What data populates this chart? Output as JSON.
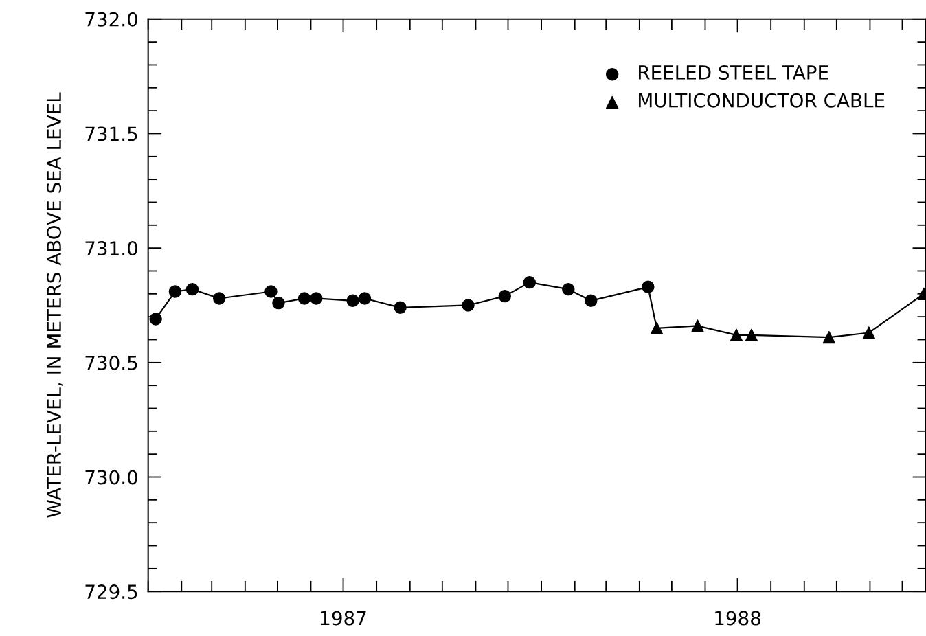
{
  "chart_data": {
    "type": "line",
    "ylabel": "WATER-LEVEL, IN METERS ABOVE SEA LEVEL",
    "xlim": [
      "1987-01-01",
      "1988-12-23"
    ],
    "ylim": [
      729.5,
      732.0
    ],
    "xticks": [
      {
        "value": "1987-01-01",
        "label": null
      },
      {
        "value": "1987-02-01",
        "label": null
      },
      {
        "value": "1987-03-01",
        "label": null
      },
      {
        "value": "1987-04-01",
        "label": null
      },
      {
        "value": "1987-05-01",
        "label": null
      },
      {
        "value": "1987-06-01",
        "label": null
      },
      {
        "value": "1987-07-01",
        "label": "1987"
      },
      {
        "value": "1987-08-01",
        "label": null
      },
      {
        "value": "1987-09-01",
        "label": null
      },
      {
        "value": "1987-10-01",
        "label": null
      },
      {
        "value": "1987-11-01",
        "label": null
      },
      {
        "value": "1987-12-01",
        "label": null
      },
      {
        "value": "1988-01-01",
        "label": null
      },
      {
        "value": "1988-02-01",
        "label": null
      },
      {
        "value": "1988-03-01",
        "label": null
      },
      {
        "value": "1988-04-01",
        "label": null
      },
      {
        "value": "1988-05-01",
        "label": null
      },
      {
        "value": "1988-06-01",
        "label": null
      },
      {
        "value": "1988-07-01",
        "label": "1988"
      },
      {
        "value": "1988-08-01",
        "label": null
      },
      {
        "value": "1988-09-01",
        "label": null
      },
      {
        "value": "1988-10-01",
        "label": null
      },
      {
        "value": "1988-11-01",
        "label": null
      },
      {
        "value": "1988-12-01",
        "label": null
      }
    ],
    "yticks": [
      {
        "value": 729.5,
        "label": "729.5"
      },
      {
        "value": 729.6,
        "label": null
      },
      {
        "value": 729.7,
        "label": null
      },
      {
        "value": 729.8,
        "label": null
      },
      {
        "value": 729.9,
        "label": null
      },
      {
        "value": 730.0,
        "label": "730.0"
      },
      {
        "value": 730.1,
        "label": null
      },
      {
        "value": 730.2,
        "label": null
      },
      {
        "value": 730.3,
        "label": null
      },
      {
        "value": 730.4,
        "label": null
      },
      {
        "value": 730.5,
        "label": "730.5"
      },
      {
        "value": 730.6,
        "label": null
      },
      {
        "value": 730.7,
        "label": null
      },
      {
        "value": 730.8,
        "label": null
      },
      {
        "value": 730.9,
        "label": null
      },
      {
        "value": 731.0,
        "label": "731.0"
      },
      {
        "value": 731.1,
        "label": null
      },
      {
        "value": 731.2,
        "label": null
      },
      {
        "value": 731.3,
        "label": null
      },
      {
        "value": 731.4,
        "label": null
      },
      {
        "value": 731.5,
        "label": "731.5"
      },
      {
        "value": 731.6,
        "label": null
      },
      {
        "value": 731.7,
        "label": null
      },
      {
        "value": 731.8,
        "label": null
      },
      {
        "value": 731.9,
        "label": null
      },
      {
        "value": 732.0,
        "label": "732.0"
      }
    ],
    "grid": false,
    "legend": "top right",
    "series": [
      {
        "type": "line",
        "marker": "none",
        "color": "#000000",
        "x": [
          "1987-01-08",
          "1987-01-26",
          "1987-02-11",
          "1987-03-08",
          "1987-04-25",
          "1987-05-02",
          "1987-05-26",
          "1987-06-06",
          "1987-07-10",
          "1987-07-21",
          "1987-08-23",
          "1987-10-25",
          "1987-11-28",
          "1987-12-21",
          "1988-01-26",
          "1988-02-16",
          "1988-04-09",
          "1988-04-17",
          "1988-05-25",
          "1988-06-30",
          "1988-07-14",
          "1988-09-24",
          "1988-10-31",
          "1988-12-21"
        ],
        "values": [
          730.69,
          730.81,
          730.82,
          730.78,
          730.81,
          730.76,
          730.78,
          730.78,
          730.77,
          730.78,
          730.74,
          730.75,
          730.79,
          730.85,
          730.82,
          730.77,
          730.83,
          730.65,
          730.66,
          730.62,
          730.62,
          730.61,
          730.63,
          730.8
        ]
      },
      {
        "type": "scatter",
        "name": "REELED STEEL TAPE",
        "marker": "circle",
        "color": "#000000",
        "x": [
          "1987-01-08",
          "1987-01-26",
          "1987-02-11",
          "1987-03-08",
          "1987-04-25",
          "1987-05-02",
          "1987-05-26",
          "1987-06-06",
          "1987-07-10",
          "1987-07-21",
          "1987-08-23",
          "1987-10-25",
          "1987-11-28",
          "1987-12-21",
          "1988-01-26",
          "1988-02-16",
          "1988-04-09"
        ],
        "values": [
          730.69,
          730.81,
          730.82,
          730.78,
          730.81,
          730.76,
          730.78,
          730.78,
          730.77,
          730.78,
          730.74,
          730.75,
          730.79,
          730.85,
          730.82,
          730.77,
          730.83
        ]
      },
      {
        "type": "scatter",
        "name": "MULTICONDUCTOR CABLE",
        "marker": "triangle",
        "color": "#000000",
        "x": [
          "1988-04-17",
          "1988-05-25",
          "1988-06-30",
          "1988-07-14",
          "1988-09-24",
          "1988-10-31",
          "1988-12-21"
        ],
        "values": [
          730.65,
          730.66,
          730.62,
          730.62,
          730.61,
          730.63,
          730.8
        ]
      }
    ]
  }
}
